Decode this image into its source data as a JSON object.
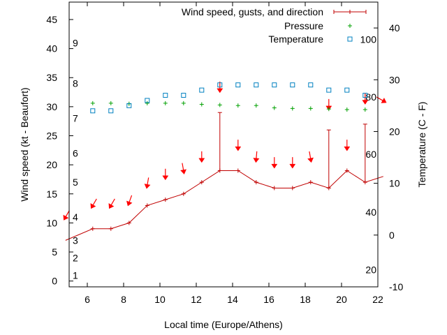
{
  "chart_data": {
    "type": "line",
    "xlabel": "Local time (Europe/Athens)",
    "ylabel_left": "Wind speed (kt - Beaufort)",
    "ylabel_right": "Temperature (C - F)",
    "xlim": [
      5,
      22
    ],
    "ylim_left": [
      -1,
      48
    ],
    "ylim_right": [
      -10,
      45
    ],
    "x_ticks": [
      6,
      8,
      10,
      12,
      14,
      16,
      18,
      20,
      22
    ],
    "y_ticks_left": [
      0,
      5,
      10,
      15,
      20,
      25,
      30,
      35,
      40,
      45
    ],
    "y_ticks_right": [
      -10,
      0,
      10,
      20,
      30,
      40
    ],
    "beaufort_labels": [
      {
        "label": "1",
        "kt": 1
      },
      {
        "label": "2",
        "kt": 4
      },
      {
        "label": "3",
        "kt": 7
      },
      {
        "label": "4",
        "kt": 11
      },
      {
        "label": "5",
        "kt": 17
      },
      {
        "label": "6",
        "kt": 22
      },
      {
        "label": "7",
        "kt": 28
      },
      {
        "label": "8",
        "kt": 34
      },
      {
        "label": "9",
        "kt": 41
      }
    ],
    "fahrenheit_labels": [
      {
        "label": "20",
        "celsius": -6.7
      },
      {
        "label": "40",
        "celsius": 4.4
      },
      {
        "label": "60",
        "celsius": 15.6
      },
      {
        "label": "80",
        "celsius": 26.7
      },
      {
        "label": "100",
        "celsius": 37.8
      }
    ],
    "legend": [
      {
        "label": "Wind speed, gusts, and direction",
        "color": "#c00000"
      },
      {
        "label": "Pressure",
        "color": "#00a000"
      },
      {
        "label": "Temperature",
        "color": "#0080c0"
      }
    ],
    "wind": {
      "name": "Wind speed, gusts, and direction",
      "x": [
        4.8,
        6.3,
        7.3,
        8.3,
        9.3,
        10.3,
        11.3,
        12.3,
        13.3,
        14.3,
        15.3,
        16.3,
        17.3,
        18.3,
        19.3,
        20.3,
        21.3,
        22.3
      ],
      "speed": [
        7,
        9,
        9,
        10,
        13,
        14,
        15,
        17,
        19,
        19,
        17,
        16,
        16,
        17,
        16,
        19,
        17,
        18
      ],
      "gusts": [
        null,
        null,
        null,
        null,
        null,
        null,
        null,
        null,
        29,
        null,
        null,
        null,
        null,
        null,
        26,
        null,
        27,
        null
      ]
    },
    "direction_arrows": {
      "x": [
        4.8,
        6.3,
        7.3,
        8.3,
        9.3,
        10.3,
        11.3,
        12.3,
        13.3,
        14.3,
        15.3,
        16.3,
        17.3,
        18.3,
        19.3,
        20.3,
        21.3,
        22.3
      ],
      "y_kt": [
        11,
        13,
        13,
        13.5,
        16.5,
        18,
        19,
        21,
        33,
        23,
        21,
        20,
        20,
        21,
        30,
        23,
        31,
        31
      ],
      "angle_deg": [
        30,
        30,
        30,
        20,
        10,
        0,
        -10,
        0,
        0,
        0,
        5,
        0,
        0,
        -10,
        0,
        0,
        0,
        -60
      ]
    },
    "pressure": {
      "name": "Pressure",
      "x": [
        6.3,
        7.3,
        8.3,
        9.3,
        10.3,
        11.3,
        12.3,
        13.3,
        14.3,
        15.3,
        16.3,
        17.3,
        18.3,
        19.3,
        20.3,
        21.3
      ],
      "y_kt": [
        30.6,
        30.6,
        30.5,
        30.6,
        30.6,
        30.6,
        30.4,
        30.3,
        30.2,
        30.2,
        29.8,
        29.7,
        29.7,
        29.6,
        29.5,
        29.5
      ]
    },
    "temperature": {
      "name": "Temperature",
      "x": [
        6.3,
        7.3,
        8.3,
        9.3,
        10.3,
        11.3,
        12.3,
        13.3,
        14.3,
        15.3,
        16.3,
        17.3,
        18.3,
        19.3,
        20.3,
        21.3
      ],
      "celsius": [
        24,
        24,
        25,
        26,
        27,
        27,
        28,
        29,
        29,
        29,
        29,
        29,
        29,
        28,
        28,
        27
      ]
    }
  }
}
